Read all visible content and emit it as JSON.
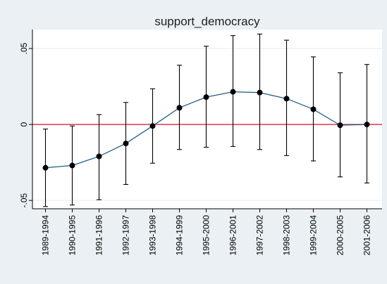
{
  "chart_data": {
    "type": "line",
    "title": "support_democracy",
    "xlabel": "",
    "ylabel": "",
    "categories": [
      "1989-1994",
      "1990-1995",
      "1991-1996",
      "1992-1997",
      "1993-1998",
      "1994-1999",
      "1995-2000",
      "1996-2001",
      "1997-2002",
      "1998-2003",
      "1999-2004",
      "2000-2005",
      "2001-2006"
    ],
    "series": [
      {
        "values": [
          -0.0285,
          -0.027,
          -0.021,
          -0.0125,
          -0.001,
          0.011,
          0.018,
          0.0215,
          0.021,
          0.017,
          0.01,
          -0.0005,
          0.0
        ],
        "ci_lower": [
          -0.054,
          -0.053,
          -0.0495,
          -0.0395,
          -0.0255,
          -0.0165,
          -0.015,
          -0.0145,
          -0.0165,
          -0.0205,
          -0.024,
          -0.0345,
          -0.0385
        ],
        "ci_upper": [
          -0.003,
          -0.001,
          0.0065,
          0.0145,
          0.0235,
          0.039,
          0.0515,
          0.0585,
          0.0595,
          0.0555,
          0.0445,
          0.034,
          0.0395
        ]
      }
    ],
    "yticks": [
      -0.05,
      0,
      0.05
    ],
    "ytick_labels": [
      "-.05",
      "0",
      ".05"
    ],
    "ylim": [
      -0.0555,
      0.0625
    ],
    "reference_line": 0,
    "grid": true,
    "colors": {
      "line": "#1f5f8b",
      "marker": "#000000",
      "error_bar": "#000000",
      "reference": "#d7263d",
      "grid": "#e6eaee",
      "plot_bg": "#ffffff",
      "outer_bg": "#eaf0f4"
    }
  }
}
